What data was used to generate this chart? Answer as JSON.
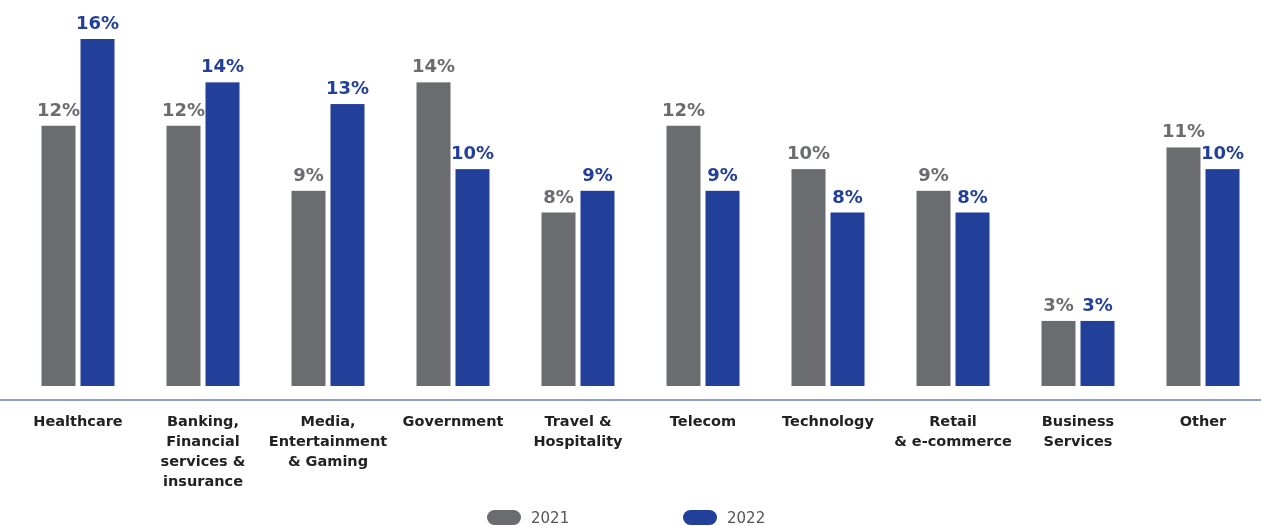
{
  "chart_data": {
    "type": "bar",
    "categories": [
      "Healthcare",
      "Banking,\nFinancial\nservices &\ninsurance",
      "Media,\nEntertainment\n& Gaming",
      "Government",
      "Travel &\nHospitality",
      "Telecom",
      "Technology",
      "Retail\n& e-commerce",
      "Business\nServices",
      "Other"
    ],
    "series": [
      {
        "name": "2021",
        "color": "#6b6c70",
        "values": [
          12,
          12,
          9,
          14,
          8,
          12,
          10,
          9,
          3,
          11
        ],
        "value_labels": [
          "12%",
          "12%",
          "9%",
          "14%",
          "8%",
          "12%",
          "10%",
          "9%",
          "3%",
          "11%"
        ]
      },
      {
        "name": "2022",
        "color": "#223f99",
        "values": [
          16,
          14,
          13,
          10,
          9,
          9,
          8,
          8,
          3,
          10
        ],
        "value_labels": [
          "16%",
          "14%",
          "13%",
          "10%",
          "9%",
          "9%",
          "8%",
          "8%",
          "3%",
          "10%"
        ]
      }
    ],
    "ylim": [
      0,
      16
    ],
    "tick_labels": "x",
    "legend": "bottom"
  }
}
